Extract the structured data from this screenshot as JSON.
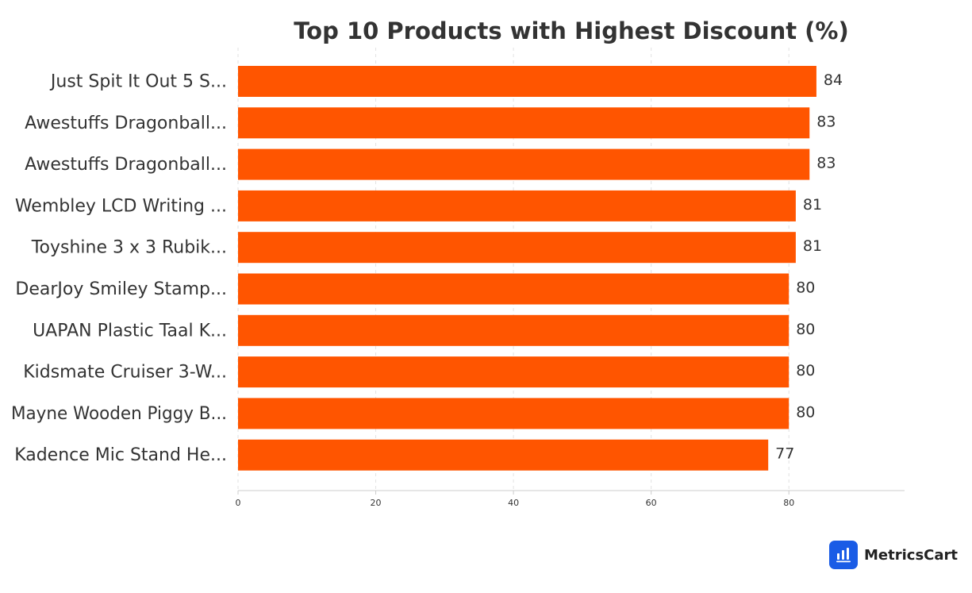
{
  "chart_data": {
    "type": "bar",
    "orientation": "horizontal",
    "title": "Top 10 Products with Highest Discount (%)",
    "xlabel": "",
    "ylabel": "",
    "categories": [
      "Just Spit It Out 5 S...",
      "Awestuffs Dragonball...",
      "Awestuffs Dragonball...",
      "Wembley LCD Writing ...",
      "Toyshine 3 x 3 Rubik...",
      "DearJoy Smiley Stamp...",
      "UAPAN Plastic Taal K...",
      "Kidsmate Cruiser 3-W...",
      "Mayne Wooden Piggy B...",
      "Kadence Mic Stand He..."
    ],
    "values": [
      84,
      83,
      83,
      81,
      81,
      80,
      80,
      80,
      80,
      77
    ],
    "xlim": [
      0,
      96.8
    ],
    "xticks": [
      0,
      20,
      40,
      60,
      80
    ],
    "grid": true,
    "bar_color": "#ff5500",
    "data_labels": true,
    "legend": "none"
  },
  "branding": {
    "name": "MetricsCart",
    "icon": "bar-chart-icon",
    "icon_color": "#1a5ce6"
  }
}
